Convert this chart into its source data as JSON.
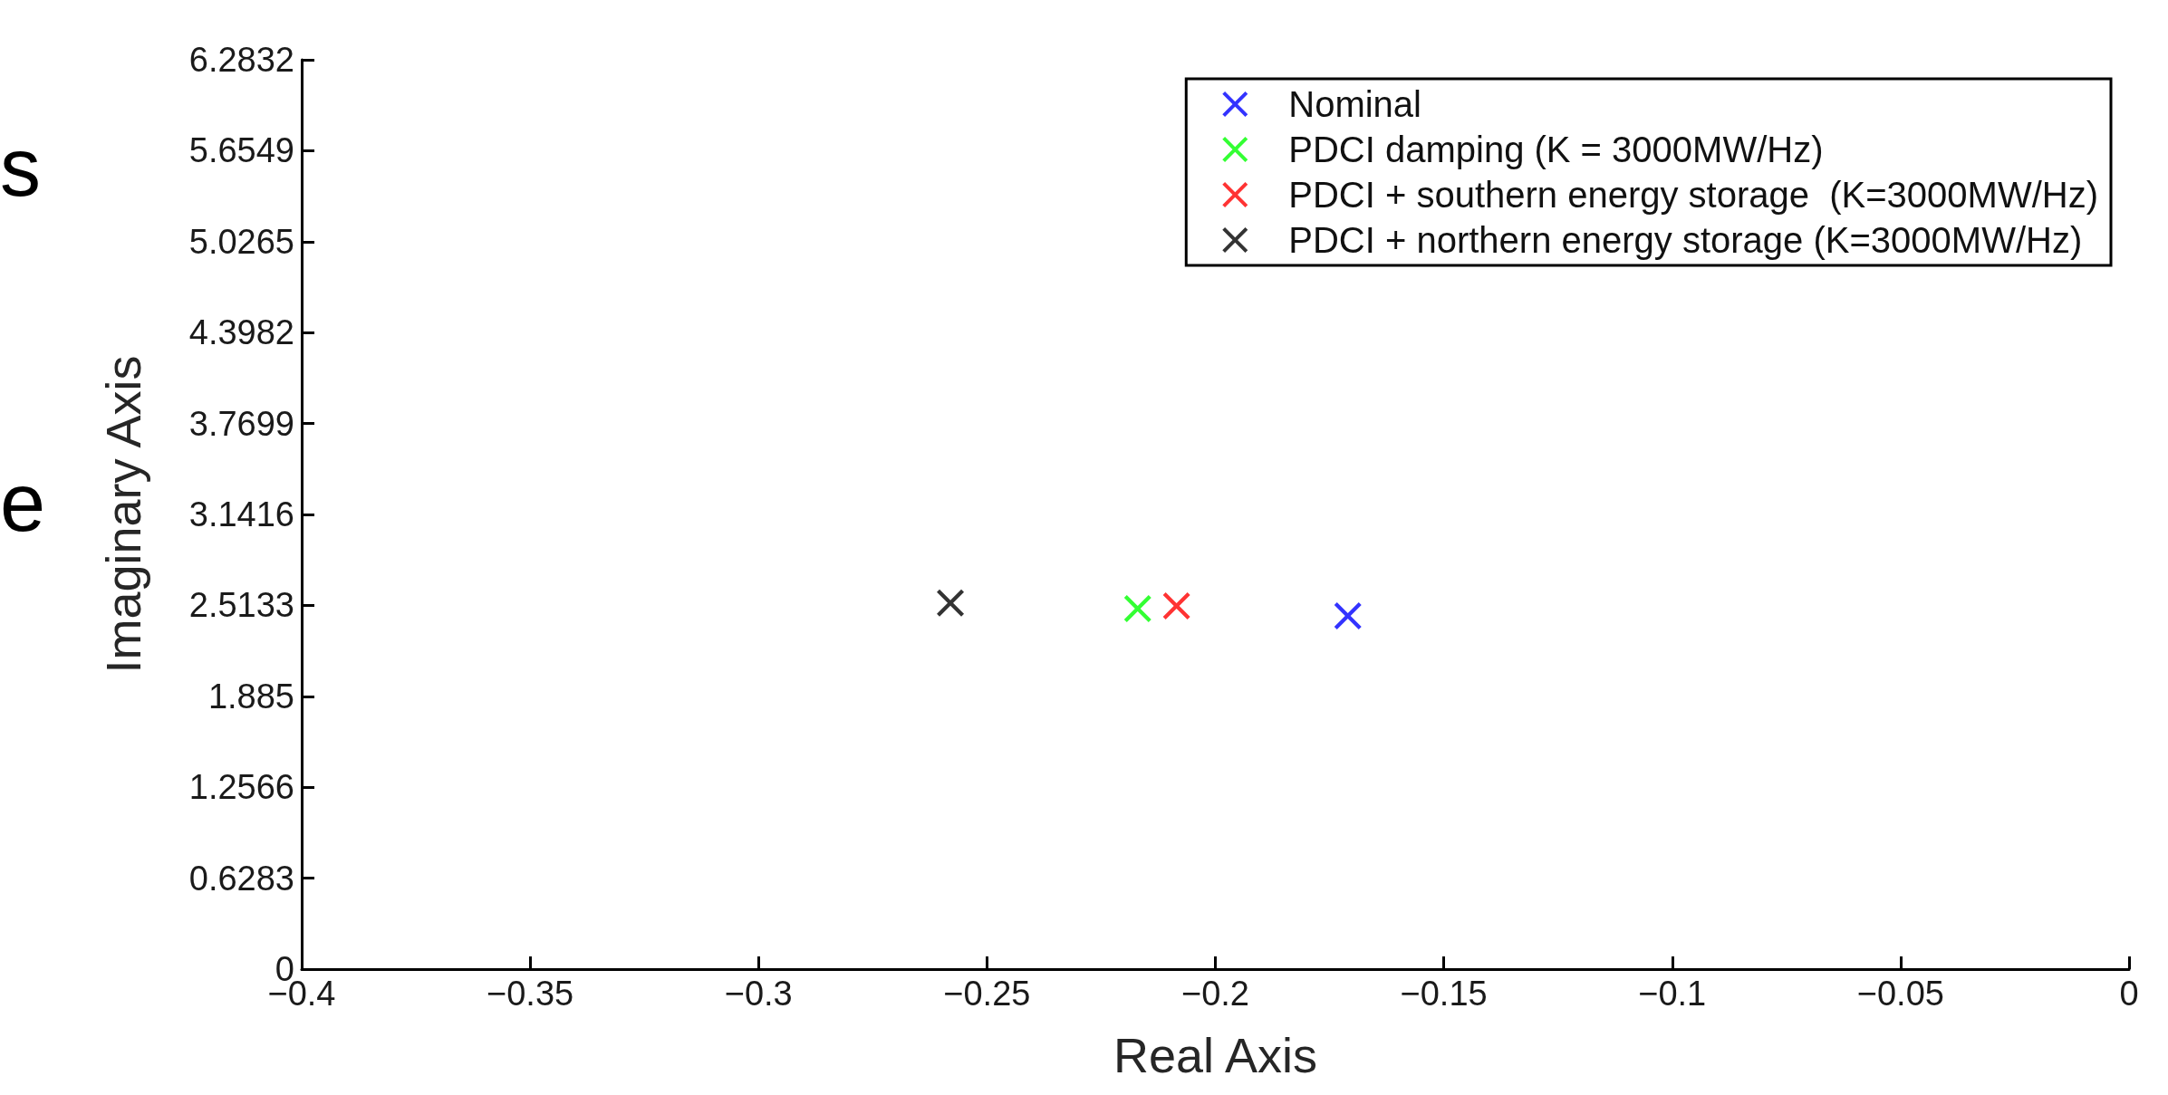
{
  "chart_data": {
    "type": "scatter",
    "xlabel": "Real Axis",
    "ylabel": "Imaginary Axis",
    "series": [
      {
        "name": "Nominal",
        "color": "#0000ff",
        "x": [
          -0.171
        ],
        "values": [
          2.44
        ]
      },
      {
        "name": "PDCI damping (K = 3000MW/Hz)",
        "color": "#00ff00",
        "x": [
          -0.217
        ],
        "values": [
          2.49
        ]
      },
      {
        "name": "PDCI + southern energy storage  (K=3000MW/Hz)",
        "color": "#ff0000",
        "x": [
          -0.2085
        ],
        "values": [
          2.51
        ]
      },
      {
        "name": "PDCI + northern energy storage (K=3000MW/Hz)",
        "color": "#000000",
        "x": [
          -0.258
        ],
        "values": [
          2.53
        ]
      }
    ],
    "xlim": [
      -0.4,
      0
    ],
    "xticks": [
      -0.4,
      -0.35,
      -0.3,
      -0.25,
      -0.2,
      -0.15,
      -0.1,
      -0.05,
      0
    ],
    "ylim": [
      0,
      6.2832
    ],
    "yticks": [
      0,
      0.6283,
      1.2566,
      1.885,
      2.5133,
      3.1416,
      3.7699,
      4.3982,
      5.0265,
      5.6549,
      6.2832
    ],
    "marker": "cross",
    "grid": false,
    "legend": "top right",
    "annotations": [
      "s",
      "e"
    ]
  }
}
